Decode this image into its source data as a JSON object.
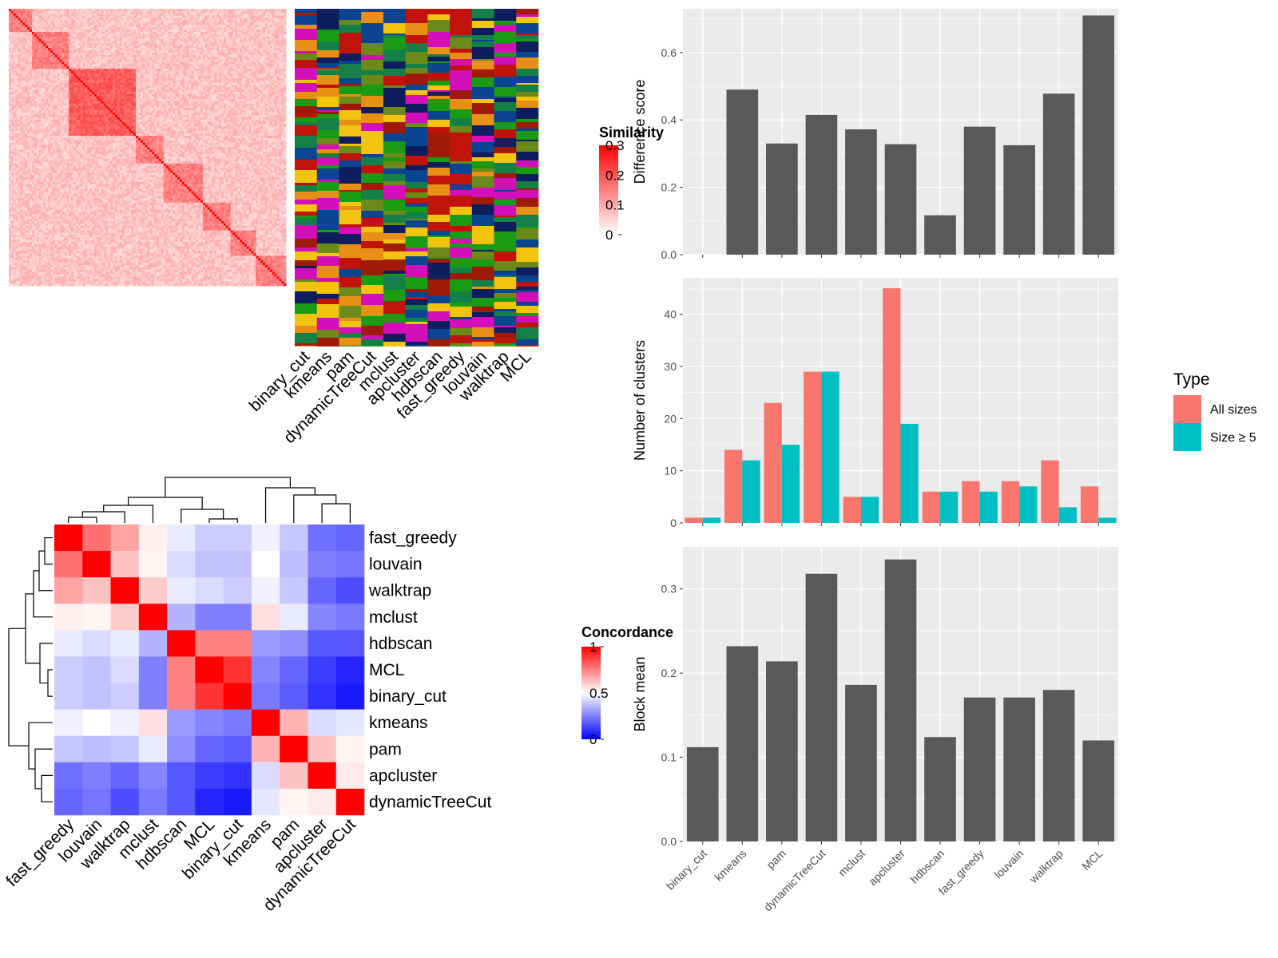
{
  "colors": {
    "panel_bg": "#ebebeb",
    "grid": "#ffffff",
    "bar": "#595959",
    "all_sizes": "#f8766d",
    "size_ge5": "#00bfc4",
    "heat_high": "#ff0000",
    "heat_mid": "#ffffff",
    "heat_low": "#0000ff"
  },
  "chart_data": [
    {
      "type": "heatmap",
      "panel": "similarity-matrix",
      "legend_title": "Similarity",
      "legend_ticks": [
        "0.3",
        "0.2",
        "0.1",
        "0"
      ],
      "scale": [
        0,
        0.3
      ],
      "n_rows": 120
    },
    {
      "type": "heatmap",
      "panel": "cluster-assignment-bars",
      "columns": [
        "binary_cut",
        "kmeans",
        "pam",
        "dynamicTreeCut",
        "mclust",
        "apcluster",
        "hdbscan",
        "fast_greedy",
        "louvain",
        "walktrap",
        "MCL"
      ],
      "palette": [
        "#0b4591",
        "#c0140a",
        "#1a9b14",
        "#e89016",
        "#f2c30f",
        "#0d1d5e",
        "#148048",
        "#6b8a1a",
        "#a01a0a",
        "#d20fb8"
      ]
    },
    {
      "type": "heatmap",
      "panel": "concordance-matrix",
      "legend_title": "Concordance",
      "legend_ticks": [
        "1",
        "0.5",
        "0"
      ],
      "scale": [
        0,
        1
      ],
      "row_labels": [
        "fast_greedy",
        "louvain",
        "walktrap",
        "mclust",
        "hdbscan",
        "MCL",
        "binary_cut",
        "kmeans",
        "pam",
        "apcluster",
        "dynamicTreeCut"
      ],
      "col_labels": [
        "fast_greedy",
        "louvain",
        "walktrap",
        "mclust",
        "hdbscan",
        "MCL",
        "binary_cut",
        "kmeans",
        "pam",
        "apcluster",
        "dynamicTreeCut"
      ],
      "values": [
        [
          1.0,
          0.78,
          0.68,
          0.53,
          0.46,
          0.4,
          0.4,
          0.47,
          0.39,
          0.22,
          0.2
        ],
        [
          0.78,
          1.0,
          0.62,
          0.52,
          0.43,
          0.38,
          0.38,
          0.5,
          0.37,
          0.25,
          0.23
        ],
        [
          0.68,
          0.62,
          1.0,
          0.6,
          0.46,
          0.43,
          0.4,
          0.47,
          0.39,
          0.2,
          0.15
        ],
        [
          0.53,
          0.52,
          0.6,
          1.0,
          0.35,
          0.25,
          0.25,
          0.56,
          0.46,
          0.26,
          0.24
        ],
        [
          0.46,
          0.43,
          0.46,
          0.35,
          1.0,
          0.75,
          0.75,
          0.3,
          0.28,
          0.17,
          0.17
        ],
        [
          0.4,
          0.38,
          0.43,
          0.25,
          0.75,
          1.0,
          0.9,
          0.26,
          0.2,
          0.12,
          0.07
        ],
        [
          0.4,
          0.38,
          0.4,
          0.25,
          0.75,
          0.9,
          1.0,
          0.24,
          0.18,
          0.1,
          0.05
        ],
        [
          0.47,
          0.5,
          0.47,
          0.56,
          0.3,
          0.26,
          0.24,
          1.0,
          0.65,
          0.43,
          0.45
        ],
        [
          0.39,
          0.37,
          0.39,
          0.46,
          0.28,
          0.2,
          0.18,
          0.65,
          1.0,
          0.62,
          0.52
        ],
        [
          0.22,
          0.25,
          0.2,
          0.26,
          0.17,
          0.12,
          0.1,
          0.43,
          0.62,
          1.0,
          0.54
        ],
        [
          0.2,
          0.23,
          0.15,
          0.24,
          0.17,
          0.07,
          0.05,
          0.45,
          0.52,
          0.54,
          1.0
        ]
      ]
    },
    {
      "type": "bar",
      "panel": "difference-score",
      "categories": [
        "binary_cut",
        "kmeans",
        "pam",
        "dynamicTreeCut",
        "mclust",
        "apcluster",
        "hdbscan",
        "fast_greedy",
        "louvain",
        "walktrap",
        "MCL"
      ],
      "values": [
        0.0,
        0.49,
        0.33,
        0.415,
        0.372,
        0.328,
        0.117,
        0.38,
        0.325,
        0.478,
        0.71
      ],
      "ylabel": "Difference score",
      "ylim": [
        0,
        0.73
      ],
      "yticks": [
        "0.0",
        "0.2",
        "0.4",
        "0.6"
      ],
      "grid": true
    },
    {
      "type": "bar",
      "panel": "number-of-clusters",
      "categories": [
        "binary_cut",
        "kmeans",
        "pam",
        "dynamicTreeCut",
        "mclust",
        "apcluster",
        "hdbscan",
        "fast_greedy",
        "louvain",
        "walktrap",
        "MCL"
      ],
      "series": [
        {
          "name": "All sizes",
          "values": [
            1,
            14,
            23,
            29,
            5,
            45,
            6,
            8,
            8,
            12,
            7
          ]
        },
        {
          "name": "Size ≥ 5",
          "values": [
            1,
            12,
            15,
            29,
            5,
            19,
            6,
            6,
            7,
            3,
            1
          ]
        }
      ],
      "ylabel": "Number of clusters",
      "ylim": [
        0,
        47
      ],
      "yticks": [
        "0",
        "10",
        "20",
        "30",
        "40"
      ],
      "legend_title": "Type",
      "legend_position": "right",
      "grid": true
    },
    {
      "type": "bar",
      "panel": "block-mean",
      "categories": [
        "binary_cut",
        "kmeans",
        "pam",
        "dynamicTreeCut",
        "mclust",
        "apcluster",
        "hdbscan",
        "fast_greedy",
        "louvain",
        "walktrap",
        "MCL"
      ],
      "values": [
        0.112,
        0.232,
        0.214,
        0.318,
        0.186,
        0.335,
        0.124,
        0.171,
        0.171,
        0.18,
        0.12
      ],
      "ylabel": "Block mean",
      "ylim": [
        0,
        0.35
      ],
      "yticks": [
        "0.0",
        "0.1",
        "0.2",
        "0.3"
      ],
      "grid": true
    }
  ]
}
